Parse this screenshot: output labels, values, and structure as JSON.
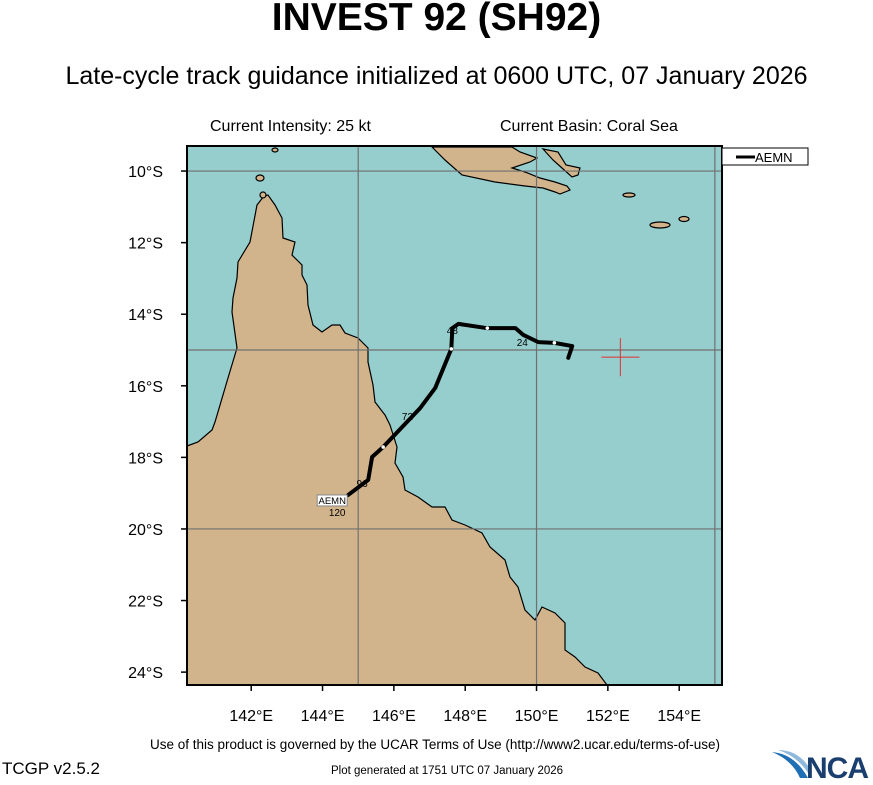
{
  "header": {
    "title": "INVEST 92 (SH92)",
    "subtitle": "Late-cycle track guidance initialized at 0600 UTC, 07 January 2026",
    "current_intensity": "Current Intensity: 25 kt",
    "current_basin": "Current Basin: Coral Sea"
  },
  "map": {
    "lon_range": [
      140.2,
      155.2
    ],
    "lat_range": [
      -24.36,
      -9.3
    ],
    "x_ticks": [
      {
        "lon": 142,
        "label": "142°E"
      },
      {
        "lon": 144,
        "label": "144°E"
      },
      {
        "lon": 146,
        "label": "146°E"
      },
      {
        "lon": 148,
        "label": "148°E"
      },
      {
        "lon": 150,
        "label": "150°E"
      },
      {
        "lon": 152,
        "label": "152°E"
      },
      {
        "lon": 154,
        "label": "154°E"
      }
    ],
    "y_ticks": [
      {
        "lat": -10,
        "label": "10°S"
      },
      {
        "lat": -12,
        "label": "12°S"
      },
      {
        "lat": -14,
        "label": "14°S"
      },
      {
        "lat": -16,
        "label": "16°S"
      },
      {
        "lat": -18,
        "label": "18°S"
      },
      {
        "lat": -20,
        "label": "20°S"
      },
      {
        "lat": -22,
        "label": "22°S"
      },
      {
        "lat": -24,
        "label": "24°S"
      }
    ],
    "grid_lons": [
      145,
      150,
      155
    ],
    "grid_lats": [
      -10,
      -15,
      -20
    ],
    "colors": {
      "ocean": "#96cdcd",
      "land": "#d2b48c",
      "track": "#000000",
      "current_position": "#e03030",
      "grid": "#707070"
    },
    "current_position": {
      "lon": 152.35,
      "lat": -15.2
    },
    "legend": {
      "label": "AEMN",
      "placement": "top-right"
    },
    "tracks": [
      {
        "name": "AEMN",
        "points": [
          [
            150.89,
            -15.22
          ],
          [
            151.0,
            -14.89
          ],
          [
            150.5,
            -14.8
          ],
          [
            150.05,
            -14.78
          ],
          [
            149.63,
            -14.58
          ],
          [
            149.41,
            -14.39
          ],
          [
            148.62,
            -14.39
          ],
          [
            147.81,
            -14.27
          ],
          [
            147.64,
            -14.39
          ],
          [
            147.61,
            -14.97
          ],
          [
            147.16,
            -16.06
          ],
          [
            146.74,
            -16.62
          ],
          [
            145.7,
            -17.71
          ],
          [
            145.39,
            -17.99
          ],
          [
            145.28,
            -18.63
          ],
          [
            144.72,
            -19.05
          ]
        ],
        "markers": [
          [
            150.5,
            -14.8
          ],
          [
            148.62,
            -14.39
          ],
          [
            147.61,
            -14.97
          ],
          [
            145.7,
            -17.71
          ]
        ],
        "tau_labels": [
          {
            "tau": "24",
            "lon": 149.6,
            "lat": -14.78
          },
          {
            "tau": "48",
            "lon": 147.64,
            "lat": -14.44
          },
          {
            "tau": "72",
            "lon": 146.38,
            "lat": -16.84
          },
          {
            "tau": "96",
            "lon": 145.11,
            "lat": -18.72
          },
          {
            "tau": "120",
            "lon": 144.41,
            "lat": -19.53
          }
        ],
        "end_label": "AEMN"
      }
    ]
  },
  "footer": {
    "terms": "Use of this product is governed by the UCAR Terms of Use (http://www2.ucar.edu/terms-of-use)",
    "version": "TCGP v2.5.2",
    "generated": "Plot generated at 1751 UTC   07 January 2026",
    "logo_text": "NCAR"
  }
}
